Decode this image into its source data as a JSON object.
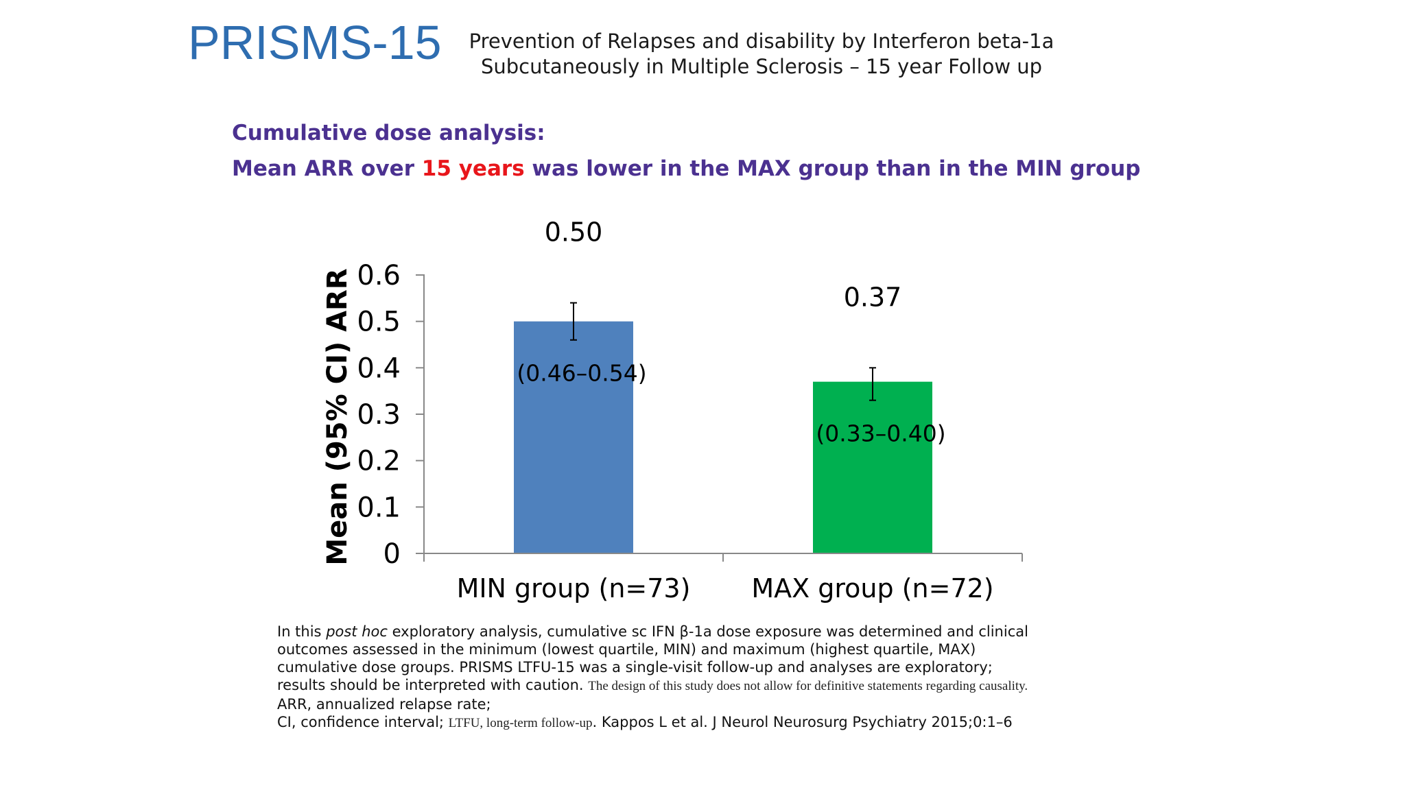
{
  "header": {
    "title": "PRISMS-15",
    "subtitle_line1": "Prevention of Relapses and disability by Interferon beta-1a",
    "subtitle_line2": "Subcutaneously in Multiple Sclerosis – 15 year Follow up"
  },
  "headings": {
    "line1": "Cumulative dose analysis:",
    "line2_pre": "Mean ARR over ",
    "line2_highlight": "15 years",
    "line2_post": " was lower in the MAX group than in the MIN group"
  },
  "colors": {
    "title": "#2e6db0",
    "heading": "#4b3190",
    "highlight": "#e8161b",
    "min_bar": "#4f81bd",
    "max_bar": "#00b050"
  },
  "chart_data": {
    "type": "bar",
    "ylabel": "Mean (95% CI) ARR",
    "xlabel": "",
    "ylim": [
      0,
      0.6
    ],
    "yticks": [
      0,
      0.1,
      0.2,
      0.3,
      0.4,
      0.5,
      0.6
    ],
    "ytick_labels": [
      "0",
      "0.1",
      "0.2",
      "0.3",
      "0.4",
      "0.5",
      "0.6"
    ],
    "categories": [
      "MIN group (n=73)",
      "MAX group (n=72)"
    ],
    "values": [
      0.5,
      0.37
    ],
    "ci_low": [
      0.46,
      0.33
    ],
    "ci_high": [
      0.54,
      0.4
    ],
    "value_labels": [
      "0.50",
      "0.37"
    ],
    "ci_labels": [
      "(0.46–0.54)",
      "(0.33–0.40)"
    ],
    "bar_colors": [
      "#4f81bd",
      "#00b050"
    ],
    "grid": false,
    "legend": "none"
  },
  "footnote": {
    "p1_a": "In this ",
    "p1_italic": "post hoc",
    "p1_b": " exploratory analysis, cumulative sc IFN β-1a dose exposure was determined and clinical outcomes assessed in the minimum (lowest quartile, MIN) and maximum (highest quartile, MAX) cumulative dose groups. PRISMS LTFU-15 was a single-visit follow-up and analyses are exploratory; results should be interpreted with caution. ",
    "p1_small": "The design of this study does not allow for definitive statements regarding causality.",
    "p2": "ARR, annualized relapse rate;",
    "p3_a": "CI, confidence interval; ",
    "p3_small": "LTFU, long-term follow-up",
    "p3_b": ". Kappos L et al. J Neurol Neurosurg Psychiatry 2015;0:1–6"
  }
}
